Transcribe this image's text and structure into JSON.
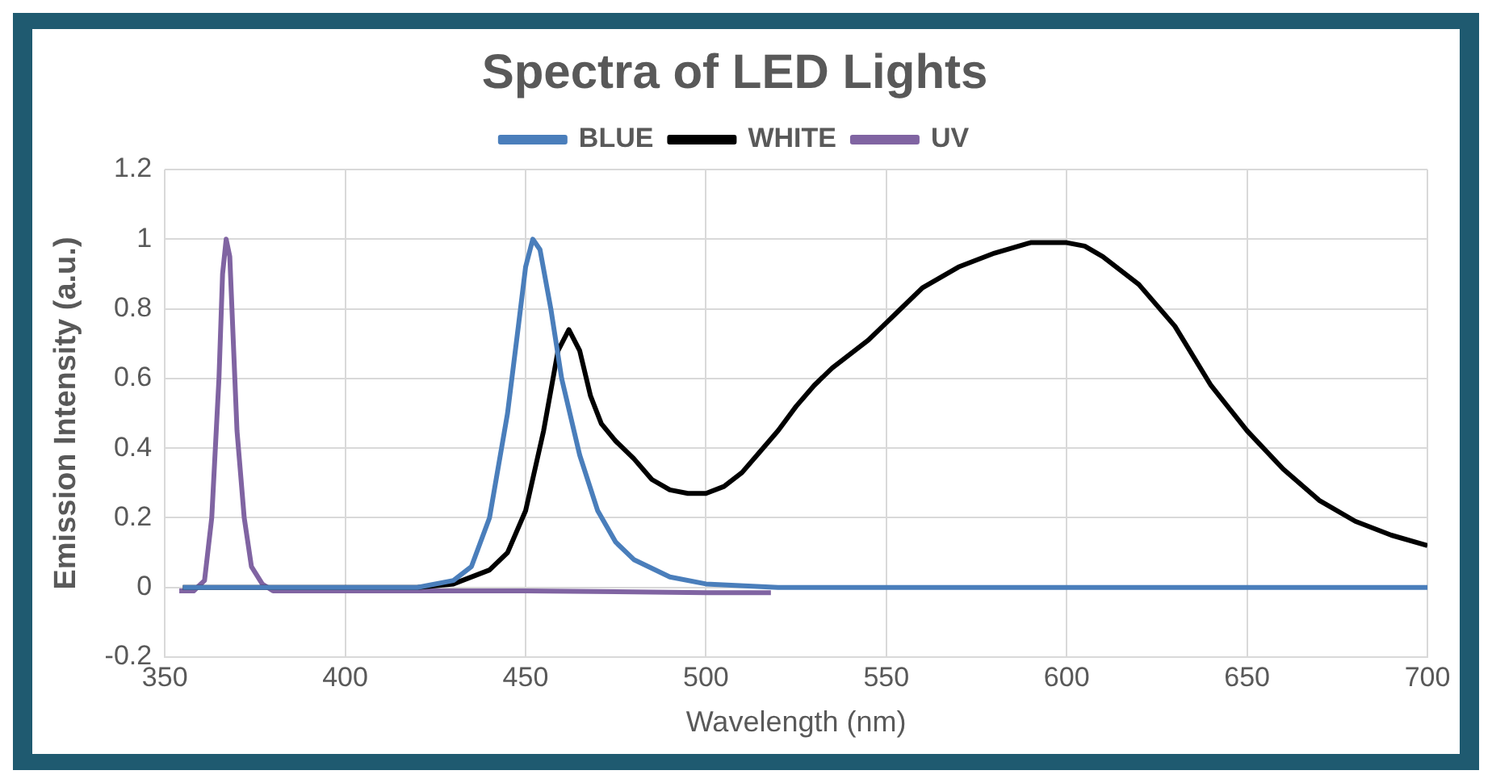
{
  "chart_data": {
    "type": "line",
    "title": "Spectra of LED Lights",
    "xlabel": "Wavelength (nm)",
    "ylabel": "Emission Intensity (a.u.)",
    "xlim": [
      350,
      700
    ],
    "xticks": [
      350,
      400,
      450,
      500,
      550,
      600,
      650,
      700
    ],
    "ylim": [
      -0.2,
      1.2
    ],
    "yticks": [
      -0.2,
      0,
      0.2,
      0.4,
      0.6,
      0.8,
      1,
      1.2
    ],
    "grid": true,
    "legend": "top",
    "marker": "none",
    "line_style": "solid",
    "series": [
      {
        "name": "BLUE",
        "color": "#4a7ebb",
        "x": [
          355,
          420,
          430,
          435,
          440,
          445,
          448,
          450,
          452,
          454,
          457,
          460,
          465,
          470,
          475,
          480,
          490,
          500,
          520,
          535,
          600,
          700
        ],
        "values": [
          0,
          0,
          0.02,
          0.06,
          0.2,
          0.5,
          0.75,
          0.92,
          1.0,
          0.97,
          0.8,
          0.6,
          0.38,
          0.22,
          0.13,
          0.08,
          0.03,
          0.01,
          0,
          0,
          0,
          0
        ]
      },
      {
        "name": "WHITE",
        "color": "#000000",
        "x": [
          355,
          420,
          430,
          440,
          445,
          450,
          455,
          459,
          462,
          465,
          468,
          471,
          475,
          480,
          485,
          490,
          495,
          500,
          505,
          510,
          515,
          520,
          525,
          530,
          535,
          540,
          545,
          550,
          555,
          560,
          570,
          580,
          590,
          600,
          605,
          610,
          620,
          630,
          640,
          650,
          660,
          670,
          680,
          690,
          700
        ],
        "values": [
          0,
          0,
          0.01,
          0.05,
          0.1,
          0.22,
          0.45,
          0.68,
          0.74,
          0.68,
          0.55,
          0.47,
          0.42,
          0.37,
          0.31,
          0.28,
          0.27,
          0.27,
          0.29,
          0.33,
          0.39,
          0.45,
          0.52,
          0.58,
          0.63,
          0.67,
          0.71,
          0.76,
          0.81,
          0.86,
          0.92,
          0.96,
          0.99,
          0.99,
          0.98,
          0.95,
          0.87,
          0.75,
          0.58,
          0.45,
          0.34,
          0.25,
          0.19,
          0.15,
          0.12
        ]
      },
      {
        "name": "UV",
        "color": "#8064a2",
        "x": [
          354,
          358,
          361,
          363,
          365,
          366,
          367,
          368,
          369,
          370,
          372,
          374,
          377,
          380,
          400,
          450,
          500,
          518
        ],
        "values": [
          -0.01,
          -0.01,
          0.02,
          0.2,
          0.6,
          0.9,
          1.0,
          0.95,
          0.7,
          0.45,
          0.2,
          0.06,
          0.01,
          -0.01,
          -0.01,
          -0.01,
          -0.015,
          -0.015
        ]
      }
    ]
  }
}
